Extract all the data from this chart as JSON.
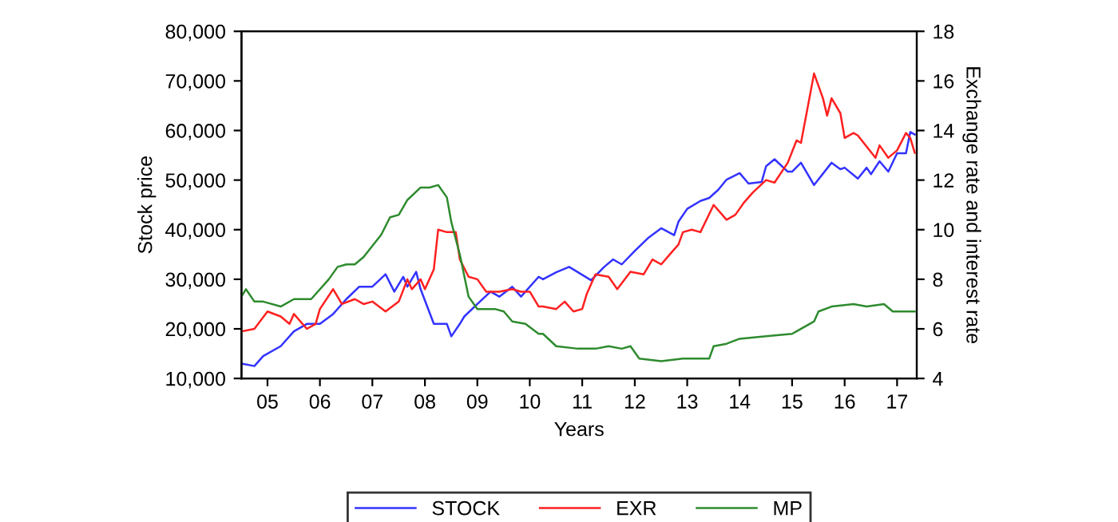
{
  "chart_data": {
    "type": "line",
    "xlabel": "Years",
    "ylabel": "Stock price",
    "y2label": "Exchange rate and interest rate",
    "xlim": [
      "2005-01-01",
      "2017-11-15"
    ],
    "xticks": [
      {
        "value": "2005-07-01",
        "label": "05"
      },
      {
        "value": "2006-07-01",
        "label": "06"
      },
      {
        "value": "2007-07-01",
        "label": "07"
      },
      {
        "value": "2008-07-01",
        "label": "08"
      },
      {
        "value": "2009-07-01",
        "label": "09"
      },
      {
        "value": "2010-07-01",
        "label": "10"
      },
      {
        "value": "2011-07-01",
        "label": "11"
      },
      {
        "value": "2012-07-01",
        "label": "12"
      },
      {
        "value": "2013-07-01",
        "label": "13"
      },
      {
        "value": "2014-07-01",
        "label": "14"
      },
      {
        "value": "2015-07-01",
        "label": "15"
      },
      {
        "value": "2016-07-01",
        "label": "16"
      },
      {
        "value": "2017-07-01",
        "label": "17"
      }
    ],
    "ylim": [
      10000,
      80000
    ],
    "yticks": [
      {
        "value": 10000,
        "label": "10,000"
      },
      {
        "value": 20000,
        "label": "20,000"
      },
      {
        "value": 30000,
        "label": "30,000"
      },
      {
        "value": 40000,
        "label": "40,000"
      },
      {
        "value": 50000,
        "label": "50,000"
      },
      {
        "value": 60000,
        "label": "60,000"
      },
      {
        "value": 70000,
        "label": "70,000"
      },
      {
        "value": 80000,
        "label": "80,000"
      }
    ],
    "y2lim": [
      4,
      18
    ],
    "y2ticks": [
      4,
      6,
      8,
      10,
      12,
      14,
      16,
      18
    ],
    "grid": false,
    "legend": "bottom",
    "marker": "none",
    "line_style": "solid",
    "series": [
      {
        "name": "STOCK",
        "color": "#3333ff",
        "x": [
          "2005-01",
          "2005-04",
          "2005-06",
          "2005-10",
          "2006-01",
          "2006-04",
          "2006-07",
          "2006-10",
          "2007-01",
          "2007-04",
          "2007-07",
          "2007-10",
          "2007-12",
          "2008-02",
          "2008-03",
          "2008-05",
          "2008-06",
          "2008-09",
          "2008-12",
          "2009-01",
          "2009-03",
          "2009-04",
          "2009-07",
          "2009-10",
          "2009-12",
          "2010-03",
          "2010-05",
          "2010-09",
          "2010-10",
          "2011-01",
          "2011-04",
          "2011-09",
          "2011-12",
          "2012-02",
          "2012-04",
          "2012-07",
          "2012-10",
          "2013-01",
          "2013-04",
          "2013-05",
          "2013-07",
          "2013-10",
          "2013-12",
          "2014-02",
          "2014-04",
          "2014-07",
          "2014-09",
          "2014-12",
          "2015-01",
          "2015-03",
          "2015-06",
          "2015-07",
          "2015-09",
          "2015-12",
          "2016-04",
          "2016-06",
          "2016-07",
          "2016-10",
          "2016-12",
          "2017-01",
          "2017-03",
          "2017-05",
          "2017-07",
          "2017-09",
          "2017-10",
          "2017-11"
        ],
        "values": [
          13000,
          12500,
          14500,
          16500,
          19500,
          21000,
          21000,
          23000,
          26000,
          28500,
          28500,
          31000,
          27500,
          30500,
          28500,
          31500,
          28000,
          21000,
          21000,
          18500,
          21000,
          22500,
          25000,
          27500,
          26500,
          28500,
          26500,
          30500,
          30000,
          31400,
          32500,
          29800,
          32500,
          34000,
          33000,
          35700,
          38300,
          40300,
          38900,
          41600,
          44200,
          45800,
          46400,
          48000,
          50100,
          51400,
          49300,
          49600,
          52800,
          54200,
          51700,
          51700,
          53500,
          49000,
          53500,
          52200,
          52500,
          50300,
          52500,
          51200,
          53800,
          51700,
          55400,
          55400,
          59700,
          59200
        ]
      },
      {
        "name": "EXR",
        "color": "#ff2020",
        "axis": "y2",
        "x": [
          "2005-01",
          "2005-04",
          "2005-07",
          "2005-10",
          "2005-12",
          "2006-01",
          "2006-04",
          "2006-06",
          "2006-07",
          "2006-10",
          "2006-12",
          "2007-03",
          "2007-05",
          "2007-07",
          "2007-10",
          "2008-01",
          "2008-03",
          "2008-04",
          "2008-06",
          "2008-07",
          "2008-09",
          "2008-10",
          "2008-12",
          "2009-02",
          "2009-03",
          "2009-05",
          "2009-07",
          "2009-09",
          "2009-12",
          "2010-03",
          "2010-05",
          "2010-07",
          "2010-09",
          "2010-10",
          "2011-01",
          "2011-03",
          "2011-05",
          "2011-07",
          "2011-08",
          "2011-10",
          "2012-01",
          "2012-03",
          "2012-06",
          "2012-09",
          "2012-11",
          "2013-01",
          "2013-03",
          "2013-05",
          "2013-06",
          "2013-08",
          "2013-10",
          "2014-01",
          "2014-04",
          "2014-06",
          "2014-08",
          "2014-10",
          "2015-01",
          "2015-03",
          "2015-06",
          "2015-08",
          "2015-09",
          "2015-12",
          "2016-02",
          "2016-03",
          "2016-04",
          "2016-06",
          "2016-07",
          "2016-09",
          "2016-10",
          "2017-02",
          "2017-03",
          "2017-05",
          "2017-07",
          "2017-09",
          "2017-10",
          "2017-11"
        ],
        "values": [
          5.9,
          6.0,
          6.7,
          6.5,
          6.2,
          6.6,
          6.0,
          6.2,
          6.8,
          7.6,
          7.0,
          7.2,
          7.0,
          7.1,
          6.7,
          7.1,
          8.0,
          7.6,
          8.0,
          7.6,
          8.4,
          10.0,
          9.9,
          9.9,
          8.8,
          8.1,
          8.0,
          7.5,
          7.5,
          7.6,
          7.5,
          7.5,
          6.9,
          6.9,
          6.8,
          7.1,
          6.7,
          6.8,
          7.4,
          8.2,
          8.1,
          7.6,
          8.3,
          8.2,
          8.8,
          8.6,
          9.0,
          9.4,
          9.9,
          10.0,
          9.9,
          11.0,
          10.4,
          10.6,
          11.1,
          11.5,
          12.0,
          11.9,
          12.7,
          13.6,
          13.5,
          16.3,
          15.3,
          14.6,
          15.3,
          14.7,
          13.7,
          13.9,
          13.8,
          12.9,
          13.4,
          12.9,
          13.2,
          13.9,
          13.7,
          13.1
        ]
      },
      {
        "name": "MP",
        "color": "#2e8b2e",
        "axis": "y2",
        "x": [
          "2005-01",
          "2005-02",
          "2005-04",
          "2005-06",
          "2005-10",
          "2006-01",
          "2006-03",
          "2006-05",
          "2006-06",
          "2006-09",
          "2006-11",
          "2007-01",
          "2007-03",
          "2007-05",
          "2007-09",
          "2007-11",
          "2008-01",
          "2008-03",
          "2008-06",
          "2008-08",
          "2008-10",
          "2008-12",
          "2009-01",
          "2009-03",
          "2009-05",
          "2009-07",
          "2009-11",
          "2010-01",
          "2010-03",
          "2010-06",
          "2010-09",
          "2010-10",
          "2011-01",
          "2011-06",
          "2011-10",
          "2012-01",
          "2012-04",
          "2012-06",
          "2012-08",
          "2013-01",
          "2013-06",
          "2013-12",
          "2014-01",
          "2014-04",
          "2014-07",
          "2015-01",
          "2015-07",
          "2015-08",
          "2015-12",
          "2016-01",
          "2016-04",
          "2016-09",
          "2016-12",
          "2017-04",
          "2017-06",
          "2017-08",
          "2017-11"
        ],
        "values": [
          7.3,
          7.6,
          7.1,
          7.1,
          6.9,
          7.2,
          7.2,
          7.2,
          7.4,
          8.0,
          8.5,
          8.6,
          8.6,
          8.9,
          9.8,
          10.5,
          10.6,
          11.2,
          11.7,
          11.7,
          11.8,
          11.3,
          10.3,
          9.0,
          7.3,
          6.8,
          6.8,
          6.7,
          6.3,
          6.2,
          5.8,
          5.8,
          5.3,
          5.2,
          5.2,
          5.3,
          5.2,
          5.3,
          4.8,
          4.7,
          4.8,
          4.8,
          5.3,
          5.4,
          5.6,
          5.7,
          5.8,
          5.9,
          6.3,
          6.7,
          6.9,
          7.0,
          6.9,
          7.0,
          6.7,
          6.7,
          6.7
        ]
      }
    ]
  }
}
